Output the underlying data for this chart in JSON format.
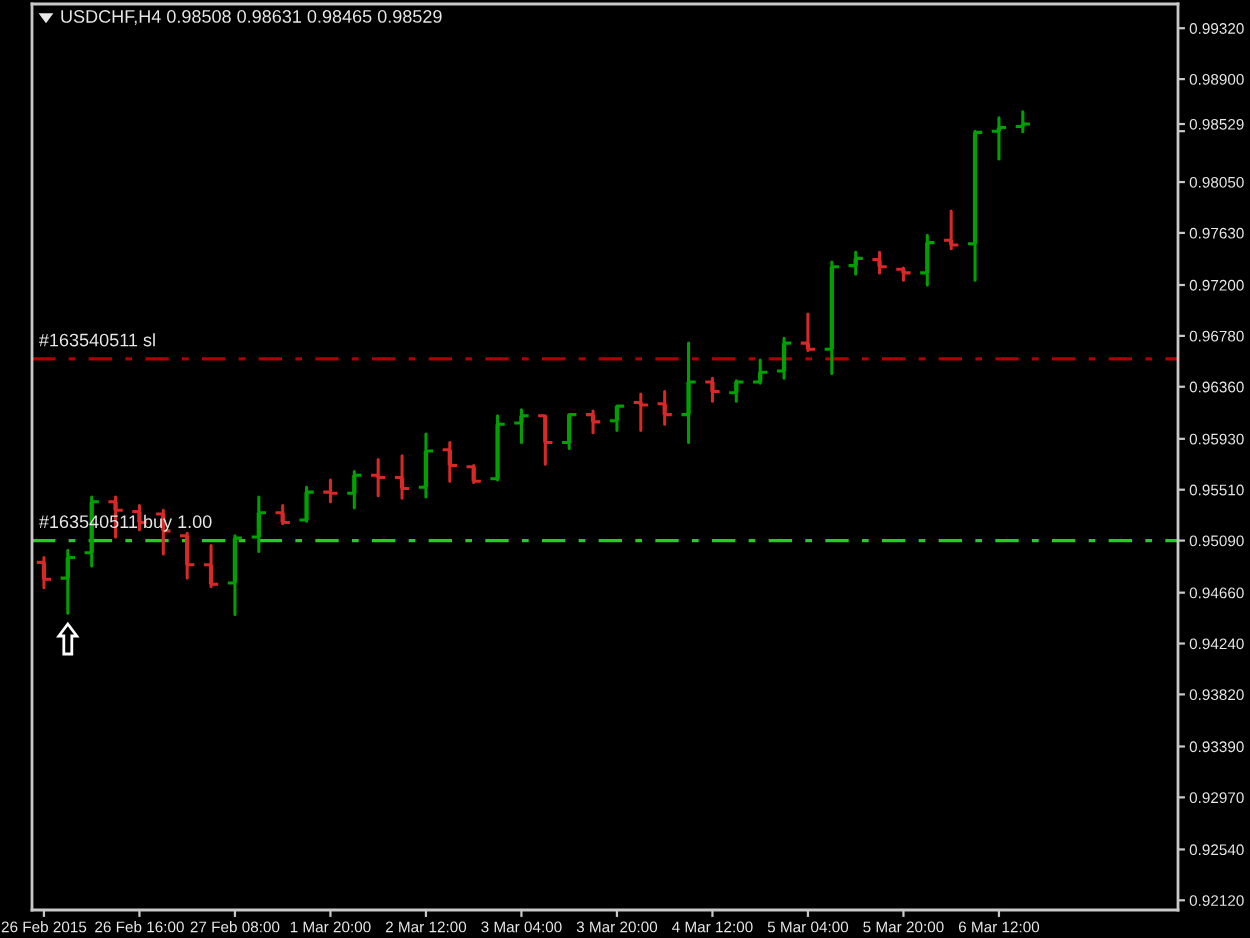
{
  "chart_data": {
    "type": "candlestick",
    "title": "USDCHF,H4 0.98508 0.98631 0.98465 0.98529",
    "categories": [
      "26 Feb 2015",
      null,
      null,
      null,
      "26 Feb 16:00",
      null,
      null,
      null,
      "27 Feb 08:00",
      null,
      null,
      null,
      "1 Mar 20:00",
      null,
      null,
      null,
      "2 Mar 12:00",
      null,
      null,
      null,
      "3 Mar 04:00",
      null,
      null,
      null,
      "3 Mar 20:00",
      null,
      null,
      null,
      "4 Mar 12:00",
      null,
      null,
      null,
      "5 Mar 04:00",
      null,
      null,
      null,
      "5 Mar 20:00",
      null,
      null,
      null,
      "6 Mar 12:00",
      null,
      null,
      null,
      null,
      null,
      null,
      null
    ],
    "ohlc": [
      [
        0.9491,
        0.9495,
        0.947,
        0.9477
      ],
      [
        0.9478,
        0.9501,
        0.9449,
        0.9495
      ],
      [
        0.9499,
        0.9545,
        0.9488,
        0.9541
      ],
      [
        0.9541,
        0.9545,
        0.9512,
        0.9534
      ],
      [
        0.9533,
        0.9538,
        0.9518,
        0.9524
      ],
      [
        0.9531,
        0.9534,
        0.9498,
        0.9517
      ],
      [
        0.9513,
        0.9515,
        0.9478,
        0.9489
      ],
      [
        0.9489,
        0.9505,
        0.9471,
        0.9473
      ],
      [
        0.9474,
        0.9513,
        0.9448,
        0.9511
      ],
      [
        0.9512,
        0.9545,
        0.95,
        0.9532
      ],
      [
        0.9532,
        0.9538,
        0.9523,
        0.9524
      ],
      [
        0.9526,
        0.9553,
        0.9525,
        0.9549
      ],
      [
        0.9549,
        0.9559,
        0.9541,
        0.9548
      ],
      [
        0.9548,
        0.9566,
        0.9536,
        0.9563
      ],
      [
        0.9563,
        0.9576,
        0.9546,
        0.9561
      ],
      [
        0.9561,
        0.9579,
        0.9544,
        0.9552
      ],
      [
        0.9553,
        0.9597,
        0.9545,
        0.9583
      ],
      [
        0.9584,
        0.959,
        0.9558,
        0.9571
      ],
      [
        0.957,
        0.9571,
        0.9557,
        0.9558
      ],
      [
        0.956,
        0.9612,
        0.9559,
        0.9605
      ],
      [
        0.9606,
        0.9617,
        0.959,
        0.9612
      ],
      [
        0.9612,
        0.9612,
        0.9572,
        0.959
      ],
      [
        0.959,
        0.9613,
        0.9585,
        0.9613
      ],
      [
        0.9613,
        0.9616,
        0.9598,
        0.9607
      ],
      [
        0.9608,
        0.962,
        0.96,
        0.962
      ],
      [
        0.9623,
        0.963,
        0.96,
        0.9621
      ],
      [
        0.9622,
        0.9632,
        0.9605,
        0.9613
      ],
      [
        0.9613,
        0.9672,
        0.959,
        0.964
      ],
      [
        0.964,
        0.9643,
        0.9624,
        0.9632
      ],
      [
        0.9631,
        0.9641,
        0.9624,
        0.964
      ],
      [
        0.964,
        0.9658,
        0.9639,
        0.9648
      ],
      [
        0.9649,
        0.9676,
        0.9643,
        0.9672
      ],
      [
        0.9672,
        0.9696,
        0.9666,
        0.9667
      ],
      [
        0.9667,
        0.9739,
        0.9647,
        0.9735
      ],
      [
        0.9736,
        0.9747,
        0.9729,
        0.9742
      ],
      [
        0.9741,
        0.9747,
        0.973,
        0.9735
      ],
      [
        0.9733,
        0.9734,
        0.9724,
        0.973
      ],
      [
        0.973,
        0.9761,
        0.972,
        0.9755
      ],
      [
        0.9757,
        0.9781,
        0.975,
        0.9753
      ],
      [
        0.9754,
        0.9847,
        0.9724,
        0.9846
      ],
      [
        0.9847,
        0.9858,
        0.9824,
        0.985
      ],
      [
        0.98508,
        0.98631,
        0.98465,
        0.98529
      ],
      null,
      null,
      null,
      null,
      null,
      null
    ],
    "colors": [
      "#d82828",
      "#00a000",
      "#00a000",
      "#d82828",
      "#d82828",
      "#d82828",
      "#d82828",
      "#d82828",
      "#00a000",
      "#00a000",
      "#d82828",
      "#00a000",
      "#d82828",
      "#00a000",
      "#d82828",
      "#d82828",
      "#00a000",
      "#d82828",
      "#d82828",
      "#00a000",
      "#00a000",
      "#d82828",
      "#00a000",
      "#d82828",
      "#00a000",
      "#d82828",
      "#d82828",
      "#00a000",
      "#d82828",
      "#00a000",
      "#00a000",
      "#00a000",
      "#d82828",
      "#00a000",
      "#00a000",
      "#d82828",
      "#d82828",
      "#00a000",
      "#d82828",
      "#00a000",
      "#00a000",
      "#00a000",
      null,
      null,
      null,
      null,
      null,
      null
    ],
    "ylim": [
      0.9204,
      0.9952
    ],
    "yticks": [
      {
        "value": 0.9932,
        "label": "0.99320"
      },
      {
        "value": 0.989,
        "label": "0.98900"
      },
      {
        "value": 0.9847,
        "label": null
      },
      {
        "value": 0.98529,
        "label": "0.98529"
      },
      {
        "value": 0.9805,
        "label": "0.98050"
      },
      {
        "value": 0.9763,
        "label": "0.97630"
      },
      {
        "value": 0.972,
        "label": "0.97200"
      },
      {
        "value": 0.9678,
        "label": "0.96780"
      },
      {
        "value": 0.9636,
        "label": "0.96360"
      },
      {
        "value": 0.9593,
        "label": "0.95930"
      },
      {
        "value": 0.9551,
        "label": "0.95510"
      },
      {
        "value": 0.9509,
        "label": "0.95090"
      },
      {
        "value": 0.9466,
        "label": "0.94660"
      },
      {
        "value": 0.9424,
        "label": "0.94240"
      },
      {
        "value": 0.9382,
        "label": "0.93820"
      },
      {
        "value": 0.9339,
        "label": "0.93390"
      },
      {
        "value": 0.9297,
        "label": "0.92970"
      },
      {
        "value": 0.9254,
        "label": "0.92540"
      },
      {
        "value": 0.9212,
        "label": "0.92120"
      }
    ],
    "ref_lines": [
      {
        "axis": "y",
        "value": 0.9659,
        "label": "#163540511 sl",
        "color": "#b00000",
        "line_style": "dashed"
      },
      {
        "axis": "y",
        "value": 0.9509,
        "label": "#163540511 buy 1.00",
        "color": "#20d020",
        "line_style": "dashed"
      }
    ]
  }
}
